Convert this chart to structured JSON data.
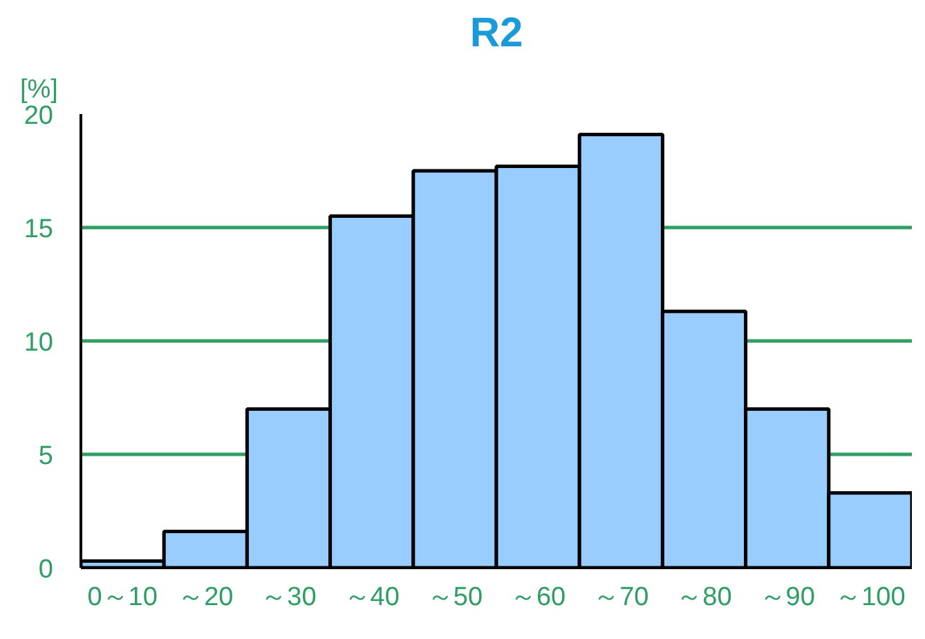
{
  "chart_data": {
    "type": "bar",
    "title": "R2",
    "ylabel": "[%]",
    "categories": [
      "0～10",
      "～20",
      "～30",
      "～40",
      "～50",
      "～60",
      "～70",
      "～80",
      "～90",
      "～100"
    ],
    "values": [
      0.3,
      1.6,
      7.0,
      15.5,
      17.5,
      17.7,
      19.1,
      11.3,
      7.0,
      3.3
    ],
    "color": "#99ccff",
    "ylim": [
      0,
      20
    ],
    "yticks": [
      0,
      5,
      10,
      15,
      20
    ],
    "grid": "y"
  }
}
